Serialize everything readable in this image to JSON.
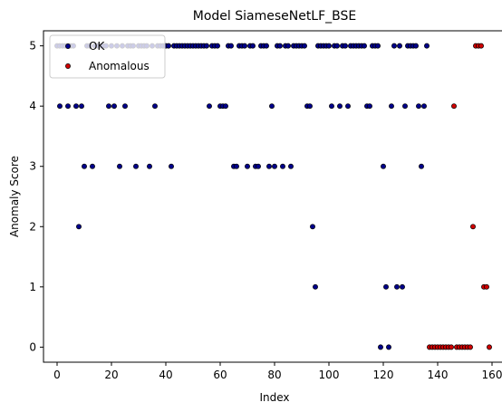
{
  "chart_data": {
    "type": "scatter",
    "title": "Model SiameseNetLF_BSE",
    "xlabel": "Index",
    "ylabel": "Anomaly Score",
    "xlim": [
      -5,
      165
    ],
    "ylim": [
      -0.25,
      5.25
    ],
    "xticks": [
      0,
      20,
      40,
      60,
      80,
      100,
      120,
      140,
      160
    ],
    "yticks": [
      0,
      1,
      2,
      3,
      4,
      5
    ],
    "grid": false,
    "legend_position": "top-left",
    "series": [
      {
        "name": "OK",
        "color": "#00008b",
        "points": [
          [
            0,
            5
          ],
          [
            1,
            4
          ],
          [
            1,
            5
          ],
          [
            2,
            5
          ],
          [
            3,
            5
          ],
          [
            4,
            4
          ],
          [
            4,
            5
          ],
          [
            5,
            5
          ],
          [
            6,
            5
          ],
          [
            7,
            4
          ],
          [
            8,
            2
          ],
          [
            9,
            4
          ],
          [
            10,
            3
          ],
          [
            11,
            5
          ],
          [
            12,
            5
          ],
          [
            13,
            3
          ],
          [
            14,
            5
          ],
          [
            15,
            5
          ],
          [
            16,
            5
          ],
          [
            17,
            5
          ],
          [
            18,
            5
          ],
          [
            19,
            4
          ],
          [
            20,
            5
          ],
          [
            21,
            4
          ],
          [
            22,
            5
          ],
          [
            23,
            3
          ],
          [
            24,
            5
          ],
          [
            25,
            4
          ],
          [
            26,
            5
          ],
          [
            27,
            5
          ],
          [
            28,
            5
          ],
          [
            29,
            3
          ],
          [
            30,
            5
          ],
          [
            31,
            5
          ],
          [
            32,
            5
          ],
          [
            33,
            5
          ],
          [
            34,
            3
          ],
          [
            35,
            5
          ],
          [
            36,
            4
          ],
          [
            37,
            5
          ],
          [
            38,
            5
          ],
          [
            39,
            5
          ],
          [
            40,
            5
          ],
          [
            41,
            5
          ],
          [
            42,
            3
          ],
          [
            43,
            5
          ],
          [
            44,
            5
          ],
          [
            45,
            5
          ],
          [
            46,
            5
          ],
          [
            47,
            5
          ],
          [
            48,
            5
          ],
          [
            49,
            5
          ],
          [
            50,
            5
          ],
          [
            51,
            5
          ],
          [
            52,
            5
          ],
          [
            53,
            5
          ],
          [
            54,
            5
          ],
          [
            55,
            5
          ],
          [
            56,
            4
          ],
          [
            57,
            5
          ],
          [
            58,
            5
          ],
          [
            59,
            5
          ],
          [
            60,
            4
          ],
          [
            61,
            4
          ],
          [
            62,
            4
          ],
          [
            63,
            5
          ],
          [
            64,
            5
          ],
          [
            65,
            3
          ],
          [
            66,
            3
          ],
          [
            67,
            5
          ],
          [
            68,
            5
          ],
          [
            69,
            5
          ],
          [
            70,
            3
          ],
          [
            71,
            5
          ],
          [
            72,
            5
          ],
          [
            73,
            3
          ],
          [
            74,
            3
          ],
          [
            75,
            5
          ],
          [
            76,
            5
          ],
          [
            77,
            5
          ],
          [
            78,
            3
          ],
          [
            79,
            4
          ],
          [
            80,
            3
          ],
          [
            81,
            5
          ],
          [
            82,
            5
          ],
          [
            83,
            3
          ],
          [
            84,
            5
          ],
          [
            85,
            5
          ],
          [
            86,
            3
          ],
          [
            87,
            5
          ],
          [
            88,
            5
          ],
          [
            89,
            5
          ],
          [
            90,
            5
          ],
          [
            91,
            5
          ],
          [
            92,
            4
          ],
          [
            93,
            4
          ],
          [
            94,
            2
          ],
          [
            95,
            1
          ],
          [
            96,
            5
          ],
          [
            97,
            5
          ],
          [
            98,
            5
          ],
          [
            99,
            5
          ],
          [
            100,
            5
          ],
          [
            101,
            4
          ],
          [
            102,
            5
          ],
          [
            103,
            5
          ],
          [
            104,
            4
          ],
          [
            105,
            5
          ],
          [
            106,
            5
          ],
          [
            107,
            4
          ],
          [
            108,
            5
          ],
          [
            109,
            5
          ],
          [
            110,
            5
          ],
          [
            111,
            5
          ],
          [
            112,
            5
          ],
          [
            113,
            5
          ],
          [
            114,
            4
          ],
          [
            115,
            4
          ],
          [
            116,
            5
          ],
          [
            117,
            5
          ],
          [
            118,
            5
          ],
          [
            119,
            0
          ],
          [
            120,
            3
          ],
          [
            121,
            1
          ],
          [
            122,
            0
          ],
          [
            123,
            4
          ],
          [
            124,
            5
          ],
          [
            125,
            1
          ],
          [
            126,
            5
          ],
          [
            127,
            1
          ],
          [
            128,
            4
          ],
          [
            129,
            5
          ],
          [
            130,
            5
          ],
          [
            131,
            5
          ],
          [
            132,
            5
          ],
          [
            133,
            4
          ],
          [
            134,
            3
          ],
          [
            135,
            4
          ],
          [
            136,
            5
          ]
        ]
      },
      {
        "name": "Anomalous",
        "color": "#d00000",
        "points": [
          [
            137,
            0
          ],
          [
            138,
            0
          ],
          [
            139,
            0
          ],
          [
            140,
            0
          ],
          [
            141,
            0
          ],
          [
            142,
            0
          ],
          [
            143,
            0
          ],
          [
            144,
            0
          ],
          [
            145,
            0
          ],
          [
            146,
            4
          ],
          [
            147,
            0
          ],
          [
            148,
            0
          ],
          [
            149,
            0
          ],
          [
            150,
            0
          ],
          [
            151,
            0
          ],
          [
            152,
            0
          ],
          [
            153,
            2
          ],
          [
            154,
            5
          ],
          [
            155,
            5
          ],
          [
            156,
            5
          ],
          [
            157,
            1
          ],
          [
            158,
            1
          ],
          [
            159,
            0
          ]
        ]
      }
    ]
  }
}
